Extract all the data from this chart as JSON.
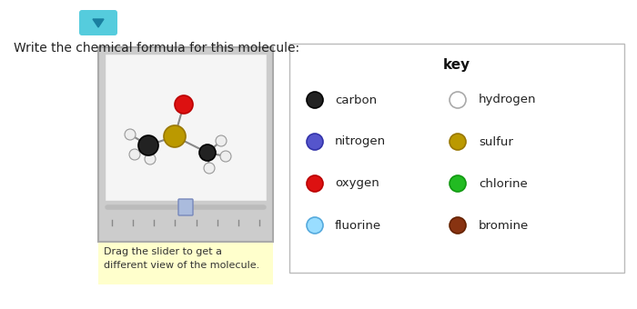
{
  "bg_color": "#ffffff",
  "title_text": "Write the chemical formula for this molecule:",
  "title_fontsize": 10,
  "key_title": "key",
  "key_title_fontsize": 11,
  "key_items_left": [
    {
      "label": "carbon",
      "color": "#222222",
      "edge": "#000000"
    },
    {
      "label": "nitrogen",
      "color": "#5555cc",
      "edge": "#3333aa"
    },
    {
      "label": "oxygen",
      "color": "#dd1111",
      "edge": "#bb0000"
    },
    {
      "label": "fluorine",
      "color": "#99ddff",
      "edge": "#55aadd"
    }
  ],
  "key_items_right": [
    {
      "label": "hydrogen",
      "color": "#ffffff",
      "edge": "#aaaaaa"
    },
    {
      "label": "sulfur",
      "color": "#bb9900",
      "edge": "#997700"
    },
    {
      "label": "chlorine",
      "color": "#22bb22",
      "edge": "#119911"
    },
    {
      "label": "bromine",
      "color": "#883311",
      "edge": "#662200"
    }
  ],
  "slider_note": "Drag the slider to get a\ndifferent view of the molecule.",
  "slider_note_bg": "#ffffcc",
  "molecule_box_color": "#cccccc",
  "molecule_inner_color": "#f5f5f5",
  "dropdown_color": "#55ccdd",
  "dropdown_arrow_color": "#1a7fa0"
}
